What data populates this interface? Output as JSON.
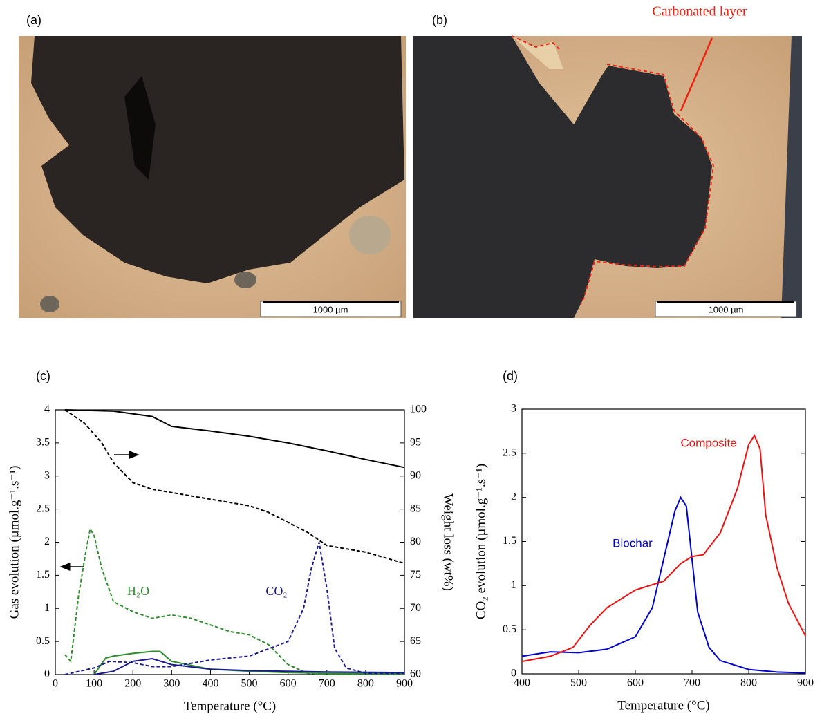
{
  "panels": {
    "a": {
      "label": "(a)",
      "scale_bar": "1000 µm"
    },
    "b": {
      "label": "(b)",
      "scale_bar": "1000 µm",
      "annotation": "Carbonated layer"
    }
  },
  "chart_data": [
    {
      "type": "line",
      "panel": "(c)",
      "xlabel": "Temperature (°C)",
      "ylabel": "Gas evolution (µmol.g⁻¹.s⁻¹)",
      "y2label": "Weight loss (wt%)",
      "annotations": [
        "H₂O",
        "CO₂"
      ],
      "xlim": [
        0,
        900
      ],
      "xticks": [
        0,
        100,
        200,
        300,
        400,
        500,
        600,
        700,
        800,
        900
      ],
      "ylim": [
        0,
        4
      ],
      "yticks": [
        0,
        0.5,
        1,
        1.5,
        2,
        2.5,
        3,
        3.5,
        4
      ],
      "y2lim": [
        60,
        100
      ],
      "y2ticks": [
        60,
        65,
        70,
        75,
        80,
        85,
        90,
        95,
        100
      ],
      "grid": false,
      "series": [
        {
          "color": "#000000",
          "dash": false,
          "axis": "y2",
          "x": [
            25,
            150,
            250,
            300,
            400,
            500,
            600,
            700,
            800,
            900
          ],
          "values": [
            100,
            99.8,
            99,
            97.5,
            96.8,
            96,
            95,
            93.8,
            92.5,
            91.3
          ]
        },
        {
          "color": "#000000",
          "dash": true,
          "axis": "y2",
          "x": [
            25,
            75,
            120,
            150,
            200,
            250,
            300,
            400,
            500,
            550,
            600,
            650,
            700,
            800,
            900
          ],
          "values": [
            100,
            98,
            95,
            92,
            89,
            88,
            87.5,
            86.5,
            85.5,
            84.5,
            83,
            81.5,
            79.5,
            78.5,
            76.8
          ]
        },
        {
          "color": "#2e8b2e",
          "dash": true,
          "x": [
            25,
            40,
            60,
            80,
            90,
            100,
            120,
            150,
            200,
            250,
            300,
            350,
            400,
            450,
            500,
            550,
            600,
            650,
            700,
            900
          ],
          "values": [
            0.3,
            0.2,
            1.2,
            1.9,
            2.2,
            2.1,
            1.6,
            1.1,
            0.95,
            0.85,
            0.9,
            0.85,
            0.75,
            0.65,
            0.6,
            0.45,
            0.15,
            0.02,
            0,
            0
          ]
        },
        {
          "color": "#2e8b2e",
          "dash": false,
          "x": [
            100,
            130,
            150,
            200,
            250,
            270,
            300,
            400,
            500,
            600,
            700,
            900
          ],
          "values": [
            0,
            0.25,
            0.28,
            0.32,
            0.35,
            0.35,
            0.2,
            0.08,
            0.05,
            0.03,
            0.02,
            0.02
          ]
        },
        {
          "color": "#1a1a8c",
          "dash": true,
          "x": [
            25,
            100,
            140,
            200,
            250,
            300,
            400,
            500,
            600,
            640,
            660,
            680,
            700,
            720,
            750,
            800,
            900
          ],
          "values": [
            0,
            0.1,
            0.2,
            0.18,
            0.12,
            0.12,
            0.22,
            0.28,
            0.5,
            1.0,
            1.6,
            2.0,
            1.3,
            0.4,
            0.1,
            0.02,
            0.02
          ]
        },
        {
          "color": "#1a1a8c",
          "dash": false,
          "x": [
            100,
            150,
            200,
            250,
            300,
            400,
            500,
            700,
            900
          ],
          "values": [
            0,
            0.05,
            0.2,
            0.24,
            0.15,
            0.08,
            0.06,
            0.04,
            0.03
          ]
        }
      ]
    },
    {
      "type": "line",
      "panel": "(d)",
      "xlabel": "Temperature (°C)",
      "ylabel": "CO₂ evolution (µmol.g⁻¹.s⁻¹)",
      "xlim": [
        400,
        900
      ],
      "xticks": [
        400,
        500,
        600,
        700,
        800,
        900
      ],
      "ylim": [
        0,
        3
      ],
      "yticks": [
        0,
        0.5,
        1,
        1.5,
        2,
        2.5,
        3
      ],
      "grid": false,
      "series": [
        {
          "name": "Biochar",
          "color": "#0000cc",
          "dash": false,
          "x": [
            400,
            450,
            500,
            550,
            600,
            630,
            650,
            670,
            680,
            690,
            700,
            710,
            730,
            750,
            800,
            850,
            900
          ],
          "values": [
            0.2,
            0.25,
            0.24,
            0.28,
            0.42,
            0.75,
            1.3,
            1.85,
            2.0,
            1.9,
            1.3,
            0.7,
            0.3,
            0.15,
            0.05,
            0.02,
            0.01
          ]
        },
        {
          "name": "Composite",
          "color": "#ee1111",
          "dash": false,
          "x": [
            400,
            450,
            490,
            520,
            550,
            600,
            650,
            680,
            700,
            720,
            750,
            780,
            800,
            810,
            820,
            830,
            850,
            870,
            900
          ],
          "values": [
            0.14,
            0.2,
            0.3,
            0.55,
            0.75,
            0.95,
            1.05,
            1.25,
            1.33,
            1.35,
            1.6,
            2.1,
            2.6,
            2.7,
            2.55,
            1.8,
            1.2,
            0.8,
            0.43
          ]
        }
      ]
    }
  ]
}
